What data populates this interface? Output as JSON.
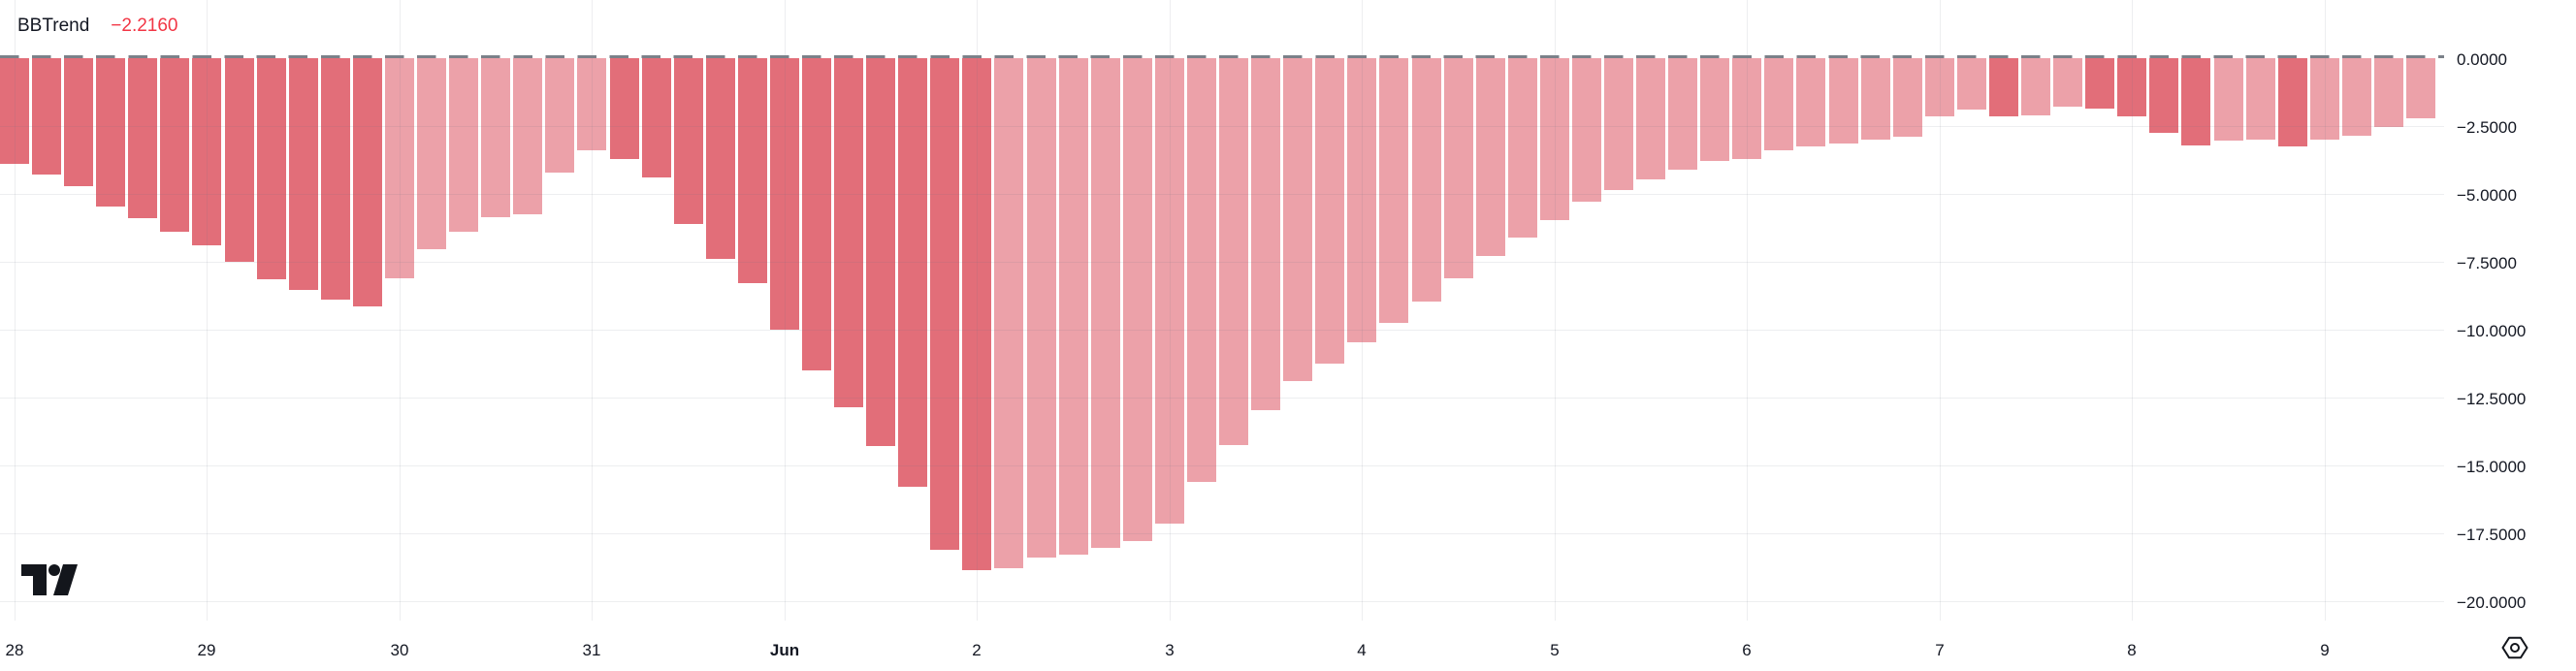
{
  "legend": {
    "title": "BBTrend",
    "value": "−2.2160"
  },
  "colors": {
    "background": "#ffffff",
    "bar_strong": "#e26e79",
    "bar_weak": "#eca1a9",
    "zero_dash": "#7b8189",
    "grid": "rgba(105,112,128,0.12)",
    "text": "#131722",
    "value_red": "#f23645",
    "icon": "#13161c"
  },
  "icons": {
    "bottom_left": "tradingview-logo",
    "bottom_right": "settings-icon"
  },
  "chart_data": {
    "type": "bar",
    "title": "BBTrend",
    "current_value": "−2.2160",
    "legend_position": "top-left",
    "grid": true,
    "y_axis_side": "right",
    "ylim": [
      -20.7,
      2.1
    ],
    "y_tick_labels": [
      "0.0000",
      "−2.5000",
      "−5.0000",
      "−7.5000",
      "−10.0000",
      "−12.5000",
      "−15.0000",
      "−17.5000",
      "−20.0000"
    ],
    "y_tick_values": [
      0,
      -2.5,
      -5,
      -7.5,
      -10,
      -12.5,
      -15,
      -17.5,
      -20
    ],
    "x_tick_labels": [
      {
        "label": "28",
        "bar": 0
      },
      {
        "label": "29",
        "bar": 6
      },
      {
        "label": "30",
        "bar": 12
      },
      {
        "label": "31",
        "bar": 18
      },
      {
        "label": "Jun",
        "bar": 24,
        "bold": true
      },
      {
        "label": "2",
        "bar": 30
      },
      {
        "label": "3",
        "bar": 36
      },
      {
        "label": "4",
        "bar": 42
      },
      {
        "label": "5",
        "bar": 48
      },
      {
        "label": "6",
        "bar": 54
      },
      {
        "label": "7",
        "bar": 60
      },
      {
        "label": "8",
        "bar": 66
      },
      {
        "label": "9",
        "bar": 72
      }
    ],
    "values": [
      -3.9,
      -4.3,
      -4.7,
      -5.45,
      -5.9,
      -6.4,
      -6.9,
      -7.5,
      -8.15,
      -8.55,
      -8.9,
      -9.15,
      -8.1,
      -7.05,
      -6.4,
      -5.85,
      -5.75,
      -4.2,
      -3.4,
      -3.7,
      -4.4,
      -6.1,
      -7.4,
      -8.3,
      -10.0,
      -11.5,
      -12.85,
      -14.3,
      -15.8,
      -18.1,
      -18.85,
      -18.8,
      -18.4,
      -18.3,
      -18.05,
      -17.8,
      -17.15,
      -15.6,
      -14.25,
      -12.95,
      -11.9,
      -11.25,
      -10.45,
      -9.75,
      -8.95,
      -8.1,
      -7.3,
      -6.6,
      -5.95,
      -5.3,
      -4.85,
      -4.45,
      -4.1,
      -3.8,
      -3.7,
      -3.4,
      -3.25,
      -3.15,
      -3.0,
      -2.9,
      -2.15,
      -1.9,
      -2.15,
      -2.1,
      -1.8,
      -1.85,
      -2.15,
      -2.75,
      -3.2,
      -3.05,
      -3.0,
      -3.25,
      -3.0,
      -2.85,
      -2.55,
      -2.216
    ],
    "shades": [
      "s",
      "s",
      "s",
      "s",
      "s",
      "s",
      "s",
      "s",
      "s",
      "s",
      "s",
      "s",
      "w",
      "w",
      "w",
      "w",
      "w",
      "w",
      "w",
      "s",
      "s",
      "s",
      "s",
      "s",
      "s",
      "s",
      "s",
      "s",
      "s",
      "s",
      "s",
      "w",
      "w",
      "w",
      "w",
      "w",
      "w",
      "w",
      "w",
      "w",
      "w",
      "w",
      "w",
      "w",
      "w",
      "w",
      "w",
      "w",
      "w",
      "w",
      "w",
      "w",
      "w",
      "w",
      "w",
      "w",
      "w",
      "w",
      "w",
      "w",
      "w",
      "w",
      "s",
      "w",
      "w",
      "s",
      "s",
      "s",
      "s",
      "w",
      "w",
      "s",
      "w",
      "w",
      "w",
      "w"
    ],
    "shade_meaning": {
      "s": "trend strengthening (dark red)",
      "w": "trend weakening (light red)"
    }
  }
}
